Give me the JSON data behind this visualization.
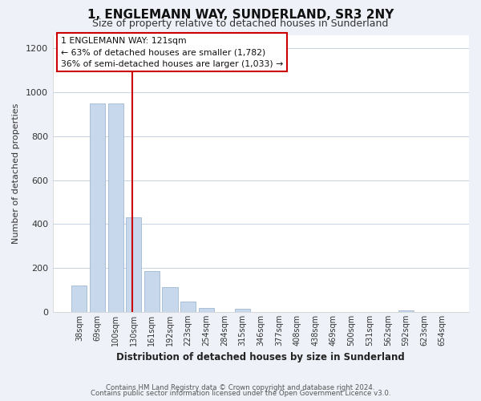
{
  "title": "1, ENGLEMANN WAY, SUNDERLAND, SR3 2NY",
  "subtitle": "Size of property relative to detached houses in Sunderland",
  "xlabel": "Distribution of detached houses by size in Sunderland",
  "ylabel": "Number of detached properties",
  "bar_labels": [
    "38sqm",
    "69sqm",
    "100sqm",
    "130sqm",
    "161sqm",
    "192sqm",
    "223sqm",
    "254sqm",
    "284sqm",
    "315sqm",
    "346sqm",
    "377sqm",
    "408sqm",
    "438sqm",
    "469sqm",
    "500sqm",
    "531sqm",
    "562sqm",
    "592sqm",
    "623sqm",
    "654sqm"
  ],
  "bar_values": [
    120,
    950,
    950,
    430,
    185,
    113,
    47,
    18,
    0,
    15,
    0,
    0,
    0,
    0,
    0,
    0,
    0,
    0,
    6,
    0,
    0
  ],
  "bar_color": "#c8d8ec",
  "bar_edge_color": "#a0b8d0",
  "vline_color": "#cc0000",
  "ylim": [
    0,
    1260
  ],
  "yticks": [
    0,
    200,
    400,
    600,
    800,
    1000,
    1200
  ],
  "annotation_title": "1 ENGLEMANN WAY: 121sqm",
  "annotation_line1": "← 63% of detached houses are smaller (1,782)",
  "annotation_line2": "36% of semi-detached houses are larger (1,033) →",
  "annotation_box_color": "#ffffff",
  "annotation_box_edge": "#cc0000",
  "footnote1": "Contains HM Land Registry data © Crown copyright and database right 2024.",
  "footnote2": "Contains public sector information licensed under the Open Government Licence v3.0.",
  "grid_color": "#c8d4e4",
  "plot_bg_color": "#ffffff",
  "fig_bg_color": "#eef2f8"
}
